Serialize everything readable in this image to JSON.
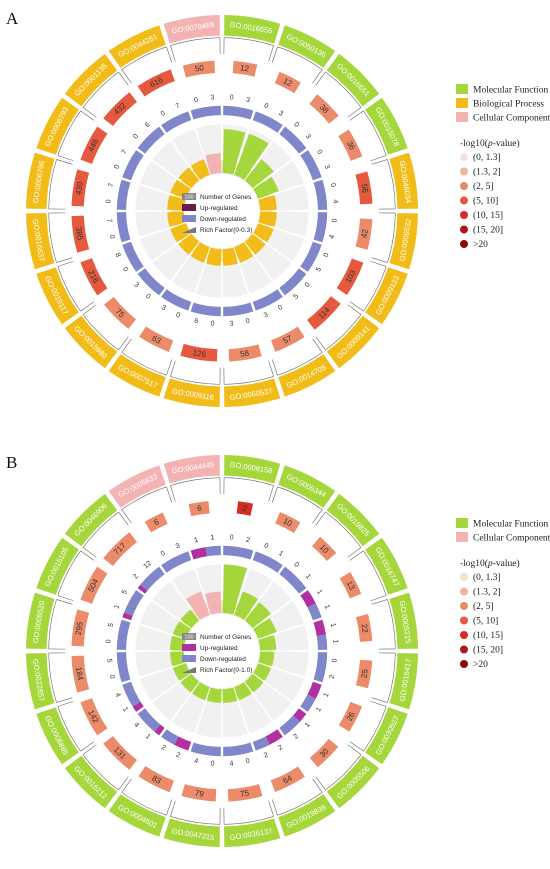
{
  "colors": {
    "mf": "#a5d63b",
    "bp": "#f2bc18",
    "cc": "#f4b3b3",
    "up": "#b22fa0",
    "down": "#7f86c9",
    "count_box": "#888888",
    "p_scale": [
      "#f6e1d7",
      "#f2b49c",
      "#ec8b6a",
      "#e55a3f",
      "#d42d22",
      "#b0171a",
      "#8a0a0f"
    ]
  },
  "panels": [
    {
      "label": "A",
      "legend": {
        "categories": [
          "Molecular Function",
          "Biological Process",
          "Cellular Component"
        ],
        "category_colors": [
          "mf",
          "bp",
          "cc"
        ],
        "p_title_prefix": "-log10(",
        "p_title_italic": "p",
        "p_title_suffix": "-value)",
        "p_bins": [
          "(0, 1.3]",
          "(1.3, 2]",
          "(2, 5]",
          "(5, 10]",
          "(10, 15]",
          "(15, 20]",
          ">20"
        ]
      },
      "inner_legend": {
        "count_box_text": "100",
        "items": [
          "Number of Genes",
          "Up-regulated",
          "Down-regulated",
          "Rich Factor(0-0.3)"
        ]
      },
      "chart_data": {
        "type": "circos-go-enrichment",
        "rich_factor_range": [
          0,
          0.3
        ],
        "terms": [
          {
            "id": "GO:0016655",
            "category": "mf",
            "count": 12,
            "p_bin": 2,
            "up": 0,
            "down": 3,
            "rich": 0.26
          },
          {
            "id": "GO:0050136",
            "category": "mf",
            "count": 12,
            "p_bin": 2,
            "up": 0,
            "down": 3,
            "rich": 0.26
          },
          {
            "id": "GO:0016651",
            "category": "mf",
            "count": 38,
            "p_bin": 2,
            "up": 0,
            "down": 3,
            "rich": 0.12
          },
          {
            "id": "GO:0015078",
            "category": "mf",
            "count": 36,
            "p_bin": 2,
            "up": 0,
            "down": 3,
            "rich": 0.08
          },
          {
            "id": "GO:0046034",
            "category": "bp",
            "count": 56,
            "p_bin": 3,
            "up": 0,
            "down": 4,
            "rich": 0.035
          },
          {
            "id": "GO:0009532",
            "category": "bp",
            "count": 42,
            "p_bin": 2,
            "up": 0,
            "down": 4,
            "rich": 0.035
          },
          {
            "id": "GO:0009123",
            "category": "bp",
            "count": 103,
            "p_bin": 3,
            "up": 0,
            "down": 5,
            "rich": 0.035
          },
          {
            "id": "GO:0009141",
            "category": "bp",
            "count": 114,
            "p_bin": 3,
            "up": 0,
            "down": 5,
            "rich": 0.035
          },
          {
            "id": "GO:0014705",
            "category": "bp",
            "count": 57,
            "p_bin": 2,
            "up": 0,
            "down": 3,
            "rich": 0.035
          },
          {
            "id": "GO:0060537",
            "category": "bp",
            "count": 58,
            "p_bin": 2,
            "up": 0,
            "down": 3,
            "rich": 0.035
          },
          {
            "id": "GO:0009116",
            "category": "bp",
            "count": 126,
            "p_bin": 3,
            "up": 0,
            "down": 6,
            "rich": 0.035
          },
          {
            "id": "GO:0007517",
            "category": "bp",
            "count": 63,
            "p_bin": 2,
            "up": 0,
            "down": 3,
            "rich": 0.035
          },
          {
            "id": "GO:0015980",
            "category": "bp",
            "count": 75,
            "p_bin": 2,
            "up": 0,
            "down": 3,
            "rich": 0.035
          },
          {
            "id": "GO:0019117",
            "category": "bp",
            "count": 216,
            "p_bin": 3,
            "up": 0,
            "down": 8,
            "rich": 0.035
          },
          {
            "id": "GO:0016637",
            "category": "bp",
            "count": 385,
            "p_bin": 3,
            "up": 0,
            "down": 7,
            "rich": 0.035
          },
          {
            "id": "GO:0006796",
            "category": "bp",
            "count": 430,
            "p_bin": 3,
            "up": 0,
            "down": 7,
            "rich": 0.035
          },
          {
            "id": "GO:0006793",
            "category": "bp",
            "count": 446,
            "p_bin": 3,
            "up": 0,
            "down": 7,
            "rich": 0.035
          },
          {
            "id": "GO:0001135",
            "category": "bp",
            "count": 432,
            "p_bin": 3,
            "up": 0,
            "down": 6,
            "rich": 0.035
          },
          {
            "id": "GO:0044281",
            "category": "bp",
            "count": 616,
            "p_bin": 3,
            "up": 0,
            "down": 7,
            "rich": 0.035
          },
          {
            "id": "GO:0070469",
            "category": "cc",
            "count": 50,
            "p_bin": 2,
            "up": 0,
            "down": 3,
            "rich": 0.06
          }
        ]
      }
    },
    {
      "label": "B",
      "legend": {
        "categories": [
          "Molecular Function",
          "Cellular Component"
        ],
        "category_colors": [
          "mf",
          "cc"
        ],
        "p_title_prefix": "-log10(",
        "p_title_italic": "p",
        "p_title_suffix": "-value)",
        "p_bins": [
          "(0, 1.3]",
          "(1.3, 2]",
          "(2, 5]",
          "(5, 10]",
          "(10, 15]",
          "(15, 20]",
          ">20"
        ]
      },
      "inner_legend": {
        "count_box_text": "100",
        "items": [
          "Number of Genes",
          "Up-regulated",
          "Down-regulated",
          "Rich Factor(0-1.0)"
        ]
      },
      "chart_data": {
        "type": "circos-go-enrichment",
        "rich_factor_range": [
          0,
          1.0
        ],
        "terms": [
          {
            "id": "GO:0008158",
            "category": "mf",
            "count": 2,
            "p_bin": 4,
            "up": 0,
            "down": 2,
            "rich": 1.0
          },
          {
            "id": "GO:0005344",
            "category": "mf",
            "count": 10,
            "p_bin": 2,
            "up": 0,
            "down": 1,
            "rich": 0.35
          },
          {
            "id": "GO:0019825",
            "category": "mf",
            "count": 10,
            "p_bin": 2,
            "up": 0,
            "down": 1,
            "rich": 0.3
          },
          {
            "id": "GO:0016747",
            "category": "mf",
            "count": 13,
            "p_bin": 2,
            "up": 1,
            "down": 1,
            "rich": 0.2
          },
          {
            "id": "GO:0005215",
            "category": "mf",
            "count": 22,
            "p_bin": 2,
            "up": 1,
            "down": 1,
            "rich": 0.1
          },
          {
            "id": "GO:0016417",
            "category": "mf",
            "count": 25,
            "p_bin": 2,
            "up": 0,
            "down": 2,
            "rich": 0.05
          },
          {
            "id": "GO:0030527",
            "category": "mf",
            "count": 26,
            "p_bin": 2,
            "up": 1,
            "down": 1,
            "rich": 0.04
          },
          {
            "id": "GO:0005506",
            "category": "mf",
            "count": 30,
            "p_bin": 2,
            "up": 1,
            "down": 2,
            "rich": 0.04
          },
          {
            "id": "GO:0019838",
            "category": "mf",
            "count": 64,
            "p_bin": 2,
            "up": 2,
            "down": 2,
            "rich": 0.04
          },
          {
            "id": "GO:0036137",
            "category": "mf",
            "count": 75,
            "p_bin": 2,
            "up": 0,
            "down": 4,
            "rich": 0.04
          },
          {
            "id": "GO:0047315",
            "category": "mf",
            "count": 79,
            "p_bin": 2,
            "up": 0,
            "down": 4,
            "rich": 0.04
          },
          {
            "id": "GO:0004601",
            "category": "mf",
            "count": 83,
            "p_bin": 2,
            "up": 2,
            "down": 2,
            "rich": 0.04
          },
          {
            "id": "GO:0016212",
            "category": "mf",
            "count": 131,
            "p_bin": 2,
            "up": 1,
            "down": 4,
            "rich": 0.04
          },
          {
            "id": "GO:0008889",
            "category": "mf",
            "count": 142,
            "p_bin": 2,
            "up": 1,
            "down": 4,
            "rich": 0.04
          },
          {
            "id": "GO:0022857",
            "category": "mf",
            "count": 184,
            "p_bin": 2,
            "up": 0,
            "down": 5,
            "rich": 0.04
          },
          {
            "id": "GO:0005520",
            "category": "mf",
            "count": 295,
            "p_bin": 2,
            "up": 0,
            "down": 5,
            "rich": 0.04
          },
          {
            "id": "GO:0015105",
            "category": "mf",
            "count": 504,
            "p_bin": 2,
            "up": 1,
            "down": 5,
            "rich": 0.04
          },
          {
            "id": "GO:0046906",
            "category": "mf",
            "count": 717,
            "p_bin": 2,
            "up": 2,
            "down": 12,
            "rich": 0.04
          },
          {
            "id": "GO:0005833",
            "category": "cc",
            "count": 6,
            "p_bin": 2,
            "up": 0,
            "down": 3,
            "rich": 0.35
          },
          {
            "id": "GO:0044445",
            "category": "cc",
            "count": 6,
            "p_bin": 2,
            "up": 1,
            "down": 1,
            "rich": 0.25
          }
        ]
      }
    }
  ]
}
